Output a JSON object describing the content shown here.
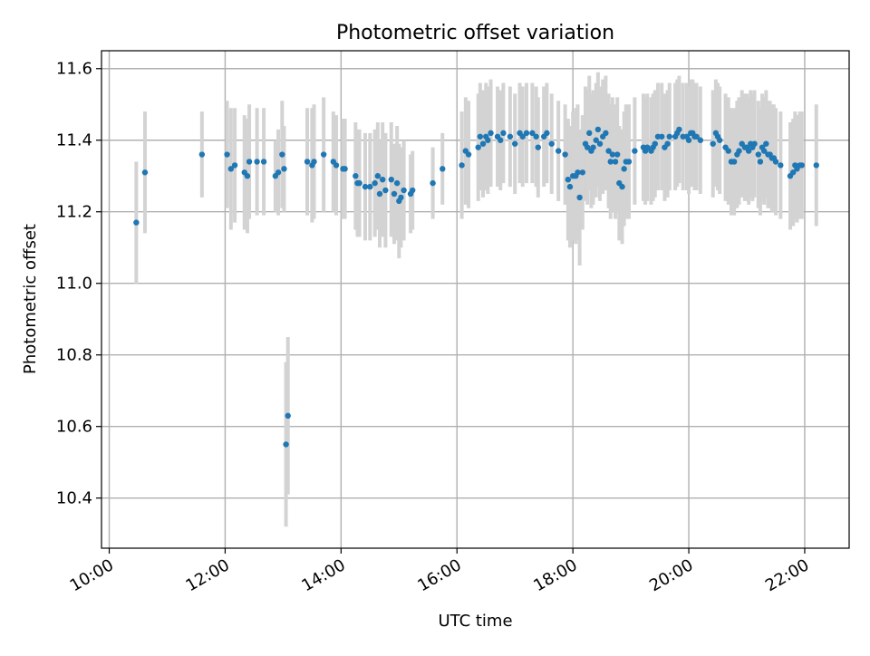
{
  "chart_data": {
    "type": "scatter",
    "title": "Photometric offset variation",
    "xlabel": "UTC time",
    "ylabel": "Photometric offset",
    "x_is_time": true,
    "xlim": [
      "09:52",
      "22:46"
    ],
    "ylim": [
      10.26,
      11.65
    ],
    "xticks": [
      "10:00",
      "12:00",
      "14:00",
      "16:00",
      "18:00",
      "20:00",
      "22:00"
    ],
    "yticks": [
      10.4,
      10.6,
      10.8,
      11.0,
      11.2,
      11.4,
      11.6
    ],
    "ytick_labels": [
      "10.4",
      "10.6",
      "10.8",
      "11.0",
      "11.2",
      "11.4",
      "11.6"
    ],
    "grid": true,
    "colors": {
      "point": "#1f77b4",
      "errorbar": "#d3d3d3",
      "grid": "#b0b0b0",
      "axis": "#000000"
    },
    "series": [
      {
        "points": [
          [
            "10:28",
            11.17,
            0.17
          ],
          [
            "10:37",
            11.31,
            0.17
          ],
          [
            "11:36",
            11.36,
            0.12
          ],
          [
            "12:02",
            11.36,
            0.15
          ],
          [
            "12:06",
            11.32,
            0.17
          ],
          [
            "12:10",
            11.33,
            0.16
          ],
          [
            "12:20",
            11.31,
            0.16
          ],
          [
            "12:23",
            11.3,
            0.16
          ],
          [
            "12:25",
            11.34,
            0.16
          ],
          [
            "12:33",
            11.34,
            0.15
          ],
          [
            "12:40",
            11.34,
            0.15
          ],
          [
            "12:52",
            11.3,
            0.1
          ],
          [
            "12:55",
            11.31,
            0.12
          ],
          [
            "12:59",
            11.36,
            0.15
          ],
          [
            "13:01",
            11.32,
            0.12
          ],
          [
            "13:03",
            10.55,
            0.23
          ],
          [
            "13:05",
            10.63,
            0.22
          ],
          [
            "13:25",
            11.34,
            0.15
          ],
          [
            "13:30",
            11.33,
            0.16
          ],
          [
            "13:32",
            11.34,
            0.16
          ],
          [
            "13:42",
            11.36,
            0.16
          ],
          [
            "13:52",
            11.34,
            0.14
          ],
          [
            "13:55",
            11.33,
            0.14
          ],
          [
            "14:02",
            11.32,
            0.14
          ],
          [
            "14:04",
            11.32,
            0.14
          ],
          [
            "14:15",
            11.3,
            0.15
          ],
          [
            "14:17",
            11.28,
            0.15
          ],
          [
            "14:19",
            11.28,
            0.15
          ],
          [
            "14:25",
            11.27,
            0.15
          ],
          [
            "14:30",
            11.27,
            0.15
          ],
          [
            "14:35",
            11.28,
            0.15
          ],
          [
            "14:38",
            11.3,
            0.15
          ],
          [
            "14:40",
            11.25,
            0.15
          ],
          [
            "14:43",
            11.29,
            0.16
          ],
          [
            "14:46",
            11.26,
            0.16
          ],
          [
            "14:52",
            11.29,
            0.16
          ],
          [
            "14:55",
            11.25,
            0.14
          ],
          [
            "14:58",
            11.28,
            0.16
          ],
          [
            "15:00",
            11.23,
            0.16
          ],
          [
            "15:02",
            11.24,
            0.14
          ],
          [
            "15:05",
            11.26,
            0.14
          ],
          [
            "15:12",
            11.25,
            0.11
          ],
          [
            "15:14",
            11.26,
            0.11
          ],
          [
            "15:35",
            11.28,
            0.1
          ],
          [
            "15:45",
            11.32,
            0.1
          ],
          [
            "16:05",
            11.33,
            0.15
          ],
          [
            "16:09",
            11.37,
            0.15
          ],
          [
            "16:12",
            11.36,
            0.15
          ],
          [
            "16:22",
            11.38,
            0.15
          ],
          [
            "16:24",
            11.41,
            0.15
          ],
          [
            "16:27",
            11.39,
            0.15
          ],
          [
            "16:30",
            11.41,
            0.15
          ],
          [
            "16:32",
            11.4,
            0.15
          ],
          [
            "16:35",
            11.42,
            0.15
          ],
          [
            "16:42",
            11.41,
            0.14
          ],
          [
            "16:45",
            11.4,
            0.14
          ],
          [
            "16:48",
            11.42,
            0.14
          ],
          [
            "16:55",
            11.41,
            0.14
          ],
          [
            "17:00",
            11.39,
            0.14
          ],
          [
            "17:05",
            11.42,
            0.14
          ],
          [
            "17:08",
            11.41,
            0.14
          ],
          [
            "17:12",
            11.42,
            0.14
          ],
          [
            "17:18",
            11.42,
            0.14
          ],
          [
            "17:22",
            11.41,
            0.14
          ],
          [
            "17:24",
            11.38,
            0.14
          ],
          [
            "17:30",
            11.41,
            0.14
          ],
          [
            "17:33",
            11.42,
            0.14
          ],
          [
            "17:38",
            11.39,
            0.14
          ],
          [
            "17:45",
            11.37,
            0.14
          ],
          [
            "17:52",
            11.36,
            0.14
          ],
          [
            "17:55",
            11.29,
            0.17
          ],
          [
            "17:57",
            11.27,
            0.17
          ],
          [
            "18:00",
            11.3,
            0.18
          ],
          [
            "18:03",
            11.3,
            0.19
          ],
          [
            "18:05",
            11.31,
            0.19
          ],
          [
            "18:07",
            11.24,
            0.19
          ],
          [
            "18:10",
            11.31,
            0.16
          ],
          [
            "18:13",
            11.39,
            0.16
          ],
          [
            "18:15",
            11.38,
            0.16
          ],
          [
            "18:17",
            11.42,
            0.16
          ],
          [
            "18:19",
            11.37,
            0.16
          ],
          [
            "18:21",
            11.38,
            0.16
          ],
          [
            "18:24",
            11.4,
            0.16
          ],
          [
            "18:26",
            11.43,
            0.16
          ],
          [
            "18:28",
            11.39,
            0.16
          ],
          [
            "18:31",
            11.41,
            0.16
          ],
          [
            "18:34",
            11.42,
            0.16
          ],
          [
            "18:37",
            11.37,
            0.16
          ],
          [
            "18:39",
            11.34,
            0.16
          ],
          [
            "18:41",
            11.36,
            0.16
          ],
          [
            "18:44",
            11.34,
            0.16
          ],
          [
            "18:46",
            11.36,
            0.16
          ],
          [
            "18:48",
            11.28,
            0.16
          ],
          [
            "18:51",
            11.27,
            0.16
          ],
          [
            "18:53",
            11.32,
            0.16
          ],
          [
            "18:55",
            11.34,
            0.16
          ],
          [
            "18:58",
            11.34,
            0.16
          ],
          [
            "19:04",
            11.37,
            0.15
          ],
          [
            "19:13",
            11.38,
            0.15
          ],
          [
            "19:15",
            11.37,
            0.15
          ],
          [
            "19:17",
            11.38,
            0.15
          ],
          [
            "19:21",
            11.37,
            0.15
          ],
          [
            "19:23",
            11.38,
            0.15
          ],
          [
            "19:25",
            11.39,
            0.15
          ],
          [
            "19:28",
            11.41,
            0.15
          ],
          [
            "19:32",
            11.41,
            0.15
          ],
          [
            "19:35",
            11.38,
            0.15
          ],
          [
            "19:38",
            11.39,
            0.15
          ],
          [
            "19:40",
            11.41,
            0.15
          ],
          [
            "19:46",
            11.41,
            0.15
          ],
          [
            "19:48",
            11.42,
            0.15
          ],
          [
            "19:50",
            11.43,
            0.15
          ],
          [
            "19:54",
            11.41,
            0.15
          ],
          [
            "19:58",
            11.41,
            0.15
          ],
          [
            "20:00",
            11.4,
            0.15
          ],
          [
            "20:02",
            11.42,
            0.15
          ],
          [
            "20:04",
            11.42,
            0.15
          ],
          [
            "20:06",
            11.41,
            0.15
          ],
          [
            "20:08",
            11.41,
            0.15
          ],
          [
            "20:12",
            11.4,
            0.15
          ],
          [
            "20:25",
            11.39,
            0.15
          ],
          [
            "20:28",
            11.42,
            0.15
          ],
          [
            "20:30",
            11.41,
            0.15
          ],
          [
            "20:32",
            11.4,
            0.15
          ],
          [
            "20:38",
            11.38,
            0.15
          ],
          [
            "20:41",
            11.37,
            0.15
          ],
          [
            "20:44",
            11.34,
            0.15
          ],
          [
            "20:47",
            11.34,
            0.15
          ],
          [
            "20:50",
            11.36,
            0.15
          ],
          [
            "20:52",
            11.37,
            0.15
          ],
          [
            "20:55",
            11.39,
            0.15
          ],
          [
            "20:58",
            11.38,
            0.15
          ],
          [
            "21:00",
            11.38,
            0.15
          ],
          [
            "21:02",
            11.37,
            0.15
          ],
          [
            "21:04",
            11.39,
            0.15
          ],
          [
            "21:06",
            11.38,
            0.15
          ],
          [
            "21:08",
            11.39,
            0.15
          ],
          [
            "21:12",
            11.36,
            0.15
          ],
          [
            "21:14",
            11.34,
            0.15
          ],
          [
            "21:16",
            11.38,
            0.15
          ],
          [
            "21:18",
            11.37,
            0.15
          ],
          [
            "21:20",
            11.39,
            0.15
          ],
          [
            "21:22",
            11.36,
            0.15
          ],
          [
            "21:24",
            11.36,
            0.15
          ],
          [
            "21:26",
            11.35,
            0.15
          ],
          [
            "21:28",
            11.35,
            0.15
          ],
          [
            "21:30",
            11.34,
            0.15
          ],
          [
            "21:35",
            11.33,
            0.15
          ],
          [
            "21:45",
            11.3,
            0.15
          ],
          [
            "21:48",
            11.31,
            0.15
          ],
          [
            "21:50",
            11.33,
            0.15
          ],
          [
            "21:52",
            11.32,
            0.15
          ],
          [
            "21:55",
            11.33,
            0.15
          ],
          [
            "21:57",
            11.33,
            0.15
          ],
          [
            "22:12",
            11.33,
            0.17
          ]
        ]
      }
    ]
  }
}
